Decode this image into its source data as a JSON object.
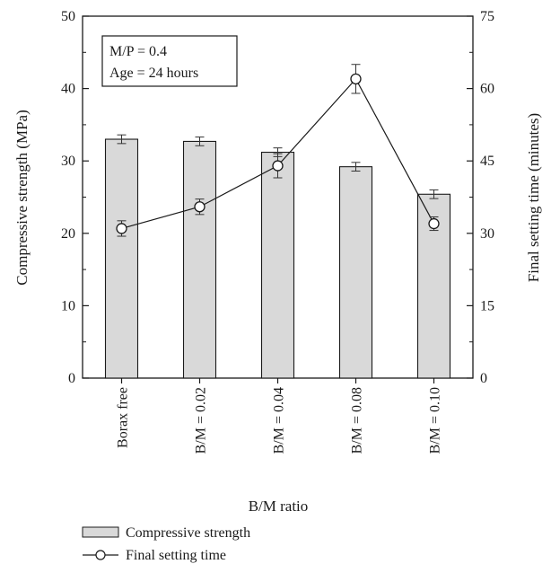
{
  "chart_data": {
    "type": "bar",
    "xlabel": "B/M ratio",
    "categories": [
      "Borax free",
      "B/M = 0.02",
      "B/M = 0.04",
      "B/M = 0.08",
      "B/M = 0.10"
    ],
    "left_axis": {
      "label": "Compressive strength (MPa)",
      "ylim": [
        0,
        50
      ],
      "ticks": [
        0,
        10,
        20,
        30,
        40,
        50
      ]
    },
    "right_axis": {
      "label": "Final setting time (minutes)",
      "ylim": [
        0,
        75
      ],
      "ticks": [
        0,
        15,
        30,
        45,
        60,
        75
      ]
    },
    "series": [
      {
        "name": "Compressive strength",
        "kind": "bar",
        "axis": "left",
        "values": [
          33.0,
          32.7,
          31.2,
          29.2,
          25.4
        ],
        "errors": [
          0.6,
          0.6,
          0.6,
          0.6,
          0.6
        ],
        "color": "#d9d9d9"
      },
      {
        "name": "Final setting time",
        "kind": "line",
        "axis": "right",
        "values": [
          31,
          35.5,
          44,
          62,
          32
        ],
        "errors": [
          1.6,
          1.6,
          2.5,
          3.0,
          1.4
        ],
        "color": "#1a1a1a"
      }
    ],
    "annotation": [
      "M/P = 0.4",
      "Age = 24 hours"
    ],
    "grid": false,
    "legend_position": "bottom-left"
  }
}
